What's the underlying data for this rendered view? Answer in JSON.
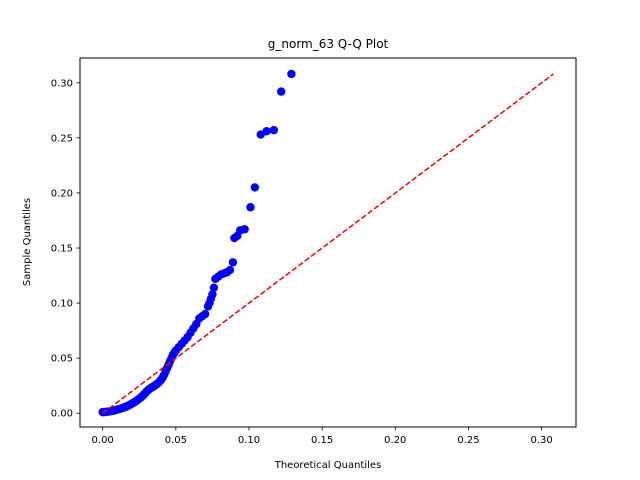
{
  "chart_data": {
    "type": "scatter",
    "title": "g_norm_63 Q-Q Plot",
    "xlabel": "Theoretical Quantiles",
    "ylabel": "Sample Quantiles",
    "xlim": [
      -0.0155,
      0.3235
    ],
    "ylim": [
      -0.0125,
      0.3225
    ],
    "xticks": [
      0.0,
      0.05,
      0.1,
      0.15,
      0.2,
      0.25,
      0.3
    ],
    "xtick_labels": [
      "0.00",
      "0.05",
      "0.10",
      "0.15",
      "0.20",
      "0.25",
      "0.30"
    ],
    "yticks": [
      0.0,
      0.05,
      0.1,
      0.15,
      0.2,
      0.25,
      0.3
    ],
    "ytick_labels": [
      "0.00",
      "0.05",
      "0.10",
      "0.15",
      "0.20",
      "0.25",
      "0.30"
    ],
    "grid": false,
    "reference_line": {
      "x": [
        0.0,
        0.308
      ],
      "y": [
        0.0,
        0.308
      ],
      "color": "#ff0000",
      "style": "dashed"
    },
    "series": [
      {
        "name": "sample",
        "color": "#0000ff",
        "points": [
          [
            0.0,
            0.001
          ],
          [
            0.001,
            0.001
          ],
          [
            0.002,
            0.0012
          ],
          [
            0.003,
            0.0013
          ],
          [
            0.004,
            0.0015
          ],
          [
            0.005,
            0.0017
          ],
          [
            0.006,
            0.002
          ],
          [
            0.007,
            0.0022
          ],
          [
            0.008,
            0.0025
          ],
          [
            0.009,
            0.003
          ],
          [
            0.01,
            0.0033
          ],
          [
            0.011,
            0.0037
          ],
          [
            0.012,
            0.004
          ],
          [
            0.013,
            0.0045
          ],
          [
            0.014,
            0.005
          ],
          [
            0.015,
            0.0055
          ],
          [
            0.016,
            0.006
          ],
          [
            0.017,
            0.0066
          ],
          [
            0.018,
            0.0072
          ],
          [
            0.019,
            0.008
          ],
          [
            0.02,
            0.0087
          ],
          [
            0.021,
            0.0095
          ],
          [
            0.022,
            0.0103
          ],
          [
            0.023,
            0.0112
          ],
          [
            0.024,
            0.0122
          ],
          [
            0.025,
            0.0132
          ],
          [
            0.026,
            0.0143
          ],
          [
            0.027,
            0.0155
          ],
          [
            0.028,
            0.0168
          ],
          [
            0.029,
            0.0182
          ],
          [
            0.03,
            0.0196
          ],
          [
            0.031,
            0.021
          ],
          [
            0.032,
            0.022
          ],
          [
            0.033,
            0.023
          ],
          [
            0.034,
            0.0237
          ],
          [
            0.035,
            0.0245
          ],
          [
            0.036,
            0.0255
          ],
          [
            0.037,
            0.0265
          ],
          [
            0.038,
            0.0275
          ],
          [
            0.039,
            0.029
          ],
          [
            0.04,
            0.0305
          ],
          [
            0.041,
            0.0325
          ],
          [
            0.042,
            0.035
          ],
          [
            0.043,
            0.038
          ],
          [
            0.044,
            0.041
          ],
          [
            0.045,
            0.044
          ],
          [
            0.046,
            0.047
          ],
          [
            0.047,
            0.05
          ],
          [
            0.048,
            0.053
          ],
          [
            0.049,
            0.055
          ],
          [
            0.05,
            0.057
          ],
          [
            0.052,
            0.06
          ],
          [
            0.054,
            0.063
          ],
          [
            0.056,
            0.066
          ],
          [
            0.058,
            0.069
          ],
          [
            0.06,
            0.073
          ],
          [
            0.062,
            0.077
          ],
          [
            0.064,
            0.081
          ],
          [
            0.066,
            0.086
          ],
          [
            0.068,
            0.088
          ],
          [
            0.07,
            0.09
          ],
          [
            0.072,
            0.097
          ],
          [
            0.073,
            0.1
          ],
          [
            0.074,
            0.104
          ],
          [
            0.075,
            0.108
          ],
          [
            0.076,
            0.114
          ],
          [
            0.077,
            0.122
          ],
          [
            0.079,
            0.124
          ],
          [
            0.081,
            0.126
          ],
          [
            0.083,
            0.127
          ],
          [
            0.085,
            0.128
          ],
          [
            0.087,
            0.13
          ],
          [
            0.089,
            0.137
          ],
          [
            0.09,
            0.159
          ],
          [
            0.092,
            0.161
          ],
          [
            0.094,
            0.166
          ],
          [
            0.097,
            0.167
          ],
          [
            0.101,
            0.187
          ],
          [
            0.104,
            0.205
          ],
          [
            0.108,
            0.253
          ],
          [
            0.112,
            0.256
          ],
          [
            0.117,
            0.257
          ],
          [
            0.122,
            0.292
          ],
          [
            0.129,
            0.308
          ]
        ]
      }
    ]
  }
}
